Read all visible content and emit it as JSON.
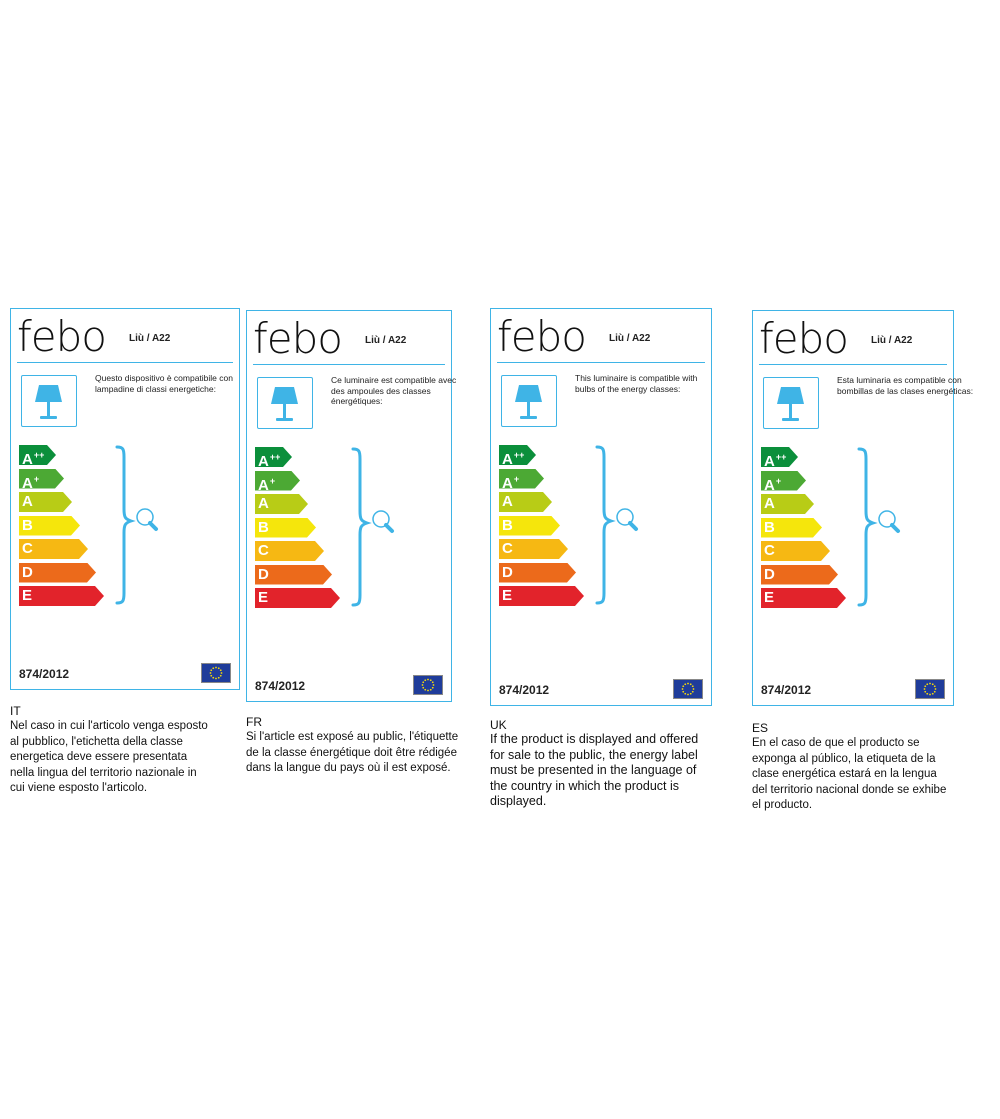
{
  "brand": "febo",
  "model": "Liù / A22",
  "regulation": "874/2012",
  "accent_color": "#3fb4e6",
  "icons": {
    "lamp": "table-lamp-icon",
    "bulb": "light-bulb-icon",
    "flag": "eu-flag-icon"
  },
  "energy_classes": [
    {
      "letter": "A",
      "sup": "++",
      "color": "#0b8f3b"
    },
    {
      "letter": "A",
      "sup": "+",
      "color": "#4ca934"
    },
    {
      "letter": "A",
      "sup": "",
      "color": "#b8cc16"
    },
    {
      "letter": "B",
      "sup": "",
      "color": "#f5e60c"
    },
    {
      "letter": "C",
      "sup": "",
      "color": "#f6b813"
    },
    {
      "letter": "D",
      "sup": "",
      "color": "#ec6a1b"
    },
    {
      "letter": "E",
      "sup": "",
      "color": "#e2232b"
    }
  ],
  "panels": [
    {
      "code": "IT",
      "compat": "Questo dispositivo è compatibile con lampadine di classi energetiche:",
      "text": "Nel caso in cui l'articolo venga esposto al pubblico, l'etichetta della classe energetica deve essere presentata nella lingua del territorio nazionale in cui viene esposto l'articolo."
    },
    {
      "code": "FR",
      "compat": "Ce luminaire est compatible avec des ampoules des classes énergétiques:",
      "text": "Si l'article est exposé au public, l'étiquette de la classe énergétique doit être rédigée dans la langue du pays où il est exposé."
    },
    {
      "code": "UK",
      "compat": "This luminaire is compatible with bulbs of the energy classes:",
      "text": "If the product is displayed and offered for sale to the public, the energy label must be presented in the language of the country in which the product is displayed."
    },
    {
      "code": "ES",
      "compat": "Esta luminaria es compatible con bombillas de las clases energéticas:",
      "text": "En el caso de que el producto se exponga al público, la etiqueta de la clase energética estará en la lengua del territorio nacional donde se exhibe el producto."
    }
  ]
}
